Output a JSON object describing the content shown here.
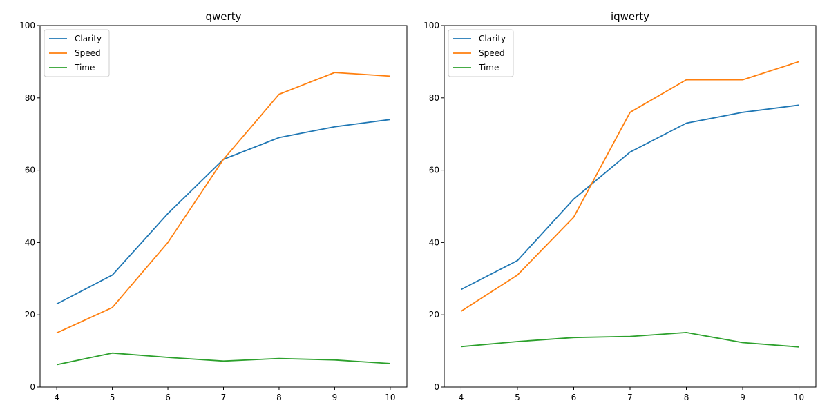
{
  "chart_data": [
    {
      "type": "line",
      "title": "qwerty",
      "xlabel": "",
      "ylabel": "",
      "x": [
        4,
        5,
        6,
        7,
        8,
        9,
        10
      ],
      "xlim": [
        3.7,
        10.3
      ],
      "ylim": [
        0,
        100
      ],
      "xticks": [
        "4",
        "5",
        "6",
        "7",
        "8",
        "9",
        "10"
      ],
      "yticks": [
        "0",
        "20",
        "40",
        "60",
        "80",
        "100"
      ],
      "grid": false,
      "legend_position": "top-left",
      "series": [
        {
          "name": "Clarity",
          "color": "#1f77b4",
          "values": [
            23,
            31,
            48,
            63,
            69,
            72,
            74
          ]
        },
        {
          "name": "Speed",
          "color": "#ff7f0e",
          "values": [
            15,
            22,
            40,
            63,
            81,
            87,
            86
          ]
        },
        {
          "name": "Time",
          "color": "#2ca02c",
          "values": [
            6.2,
            9.4,
            8.2,
            7.2,
            7.9,
            7.5,
            6.5
          ]
        }
      ]
    },
    {
      "type": "line",
      "title": "iqwerty",
      "xlabel": "",
      "ylabel": "",
      "x": [
        4,
        5,
        6,
        7,
        8,
        9,
        10
      ],
      "xlim": [
        3.7,
        10.3
      ],
      "ylim": [
        0,
        100
      ],
      "xticks": [
        "4",
        "5",
        "6",
        "7",
        "8",
        "9",
        "10"
      ],
      "yticks": [
        "0",
        "20",
        "40",
        "60",
        "80",
        "100"
      ],
      "grid": false,
      "legend_position": "top-left",
      "series": [
        {
          "name": "Clarity",
          "color": "#1f77b4",
          "values": [
            27,
            35,
            52,
            65,
            73,
            76,
            78
          ]
        },
        {
          "name": "Speed",
          "color": "#ff7f0e",
          "values": [
            21,
            31,
            47,
            76,
            85,
            85,
            90
          ]
        },
        {
          "name": "Time",
          "color": "#2ca02c",
          "values": [
            11.2,
            12.6,
            13.7,
            14.0,
            15.1,
            12.3,
            11.1
          ]
        }
      ]
    }
  ]
}
